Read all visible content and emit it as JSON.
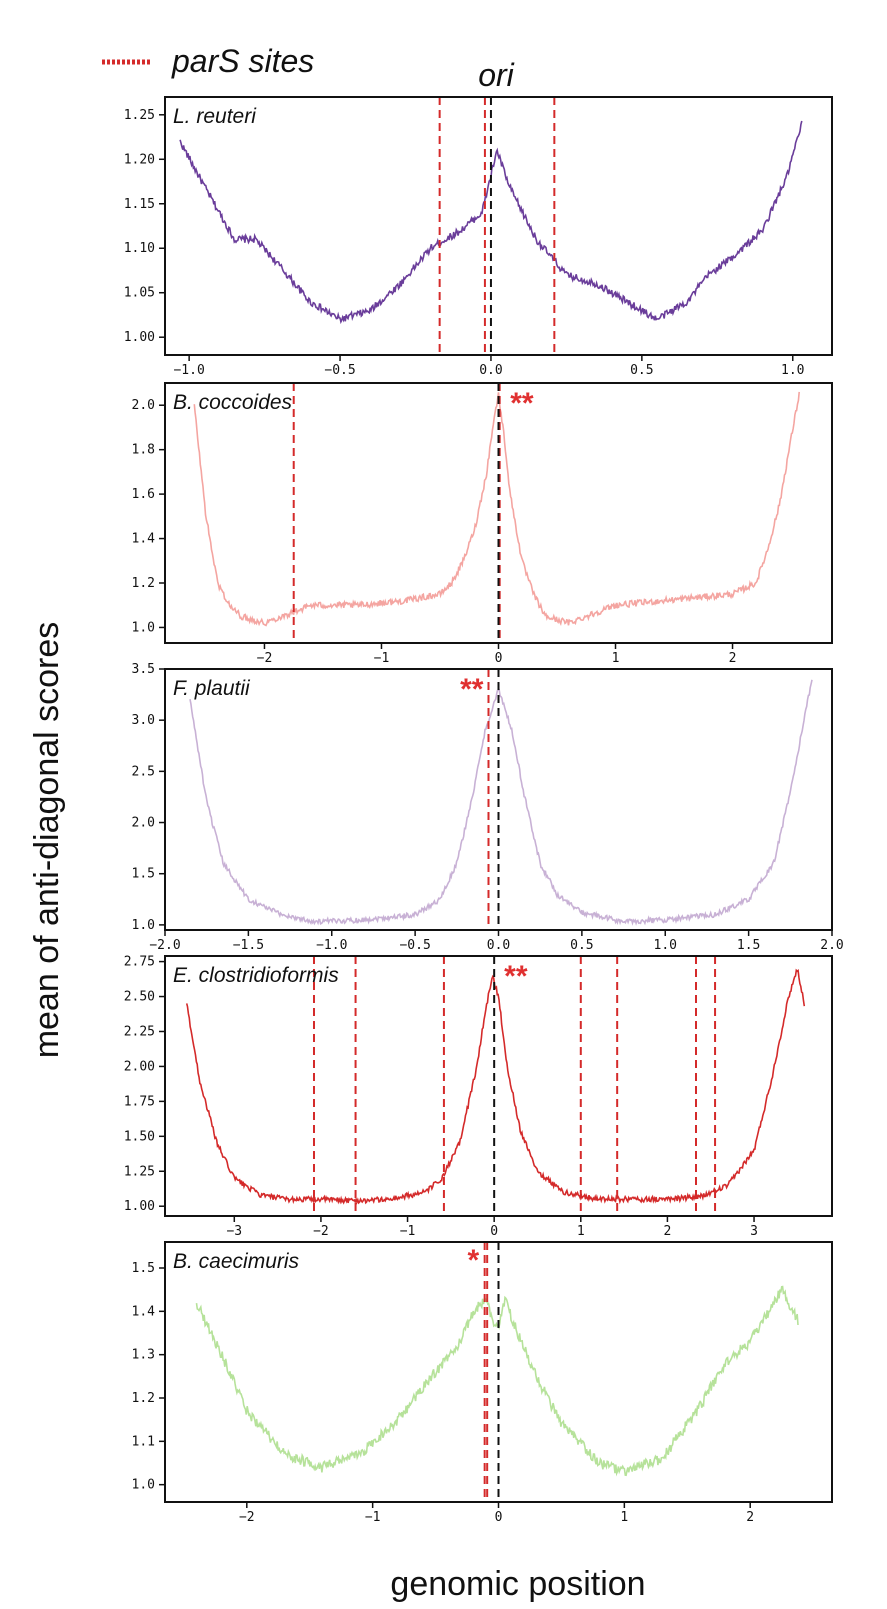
{
  "legend": {
    "label": "parS sites",
    "color": "#d42a2a"
  },
  "ori_label": "ori",
  "ylabel": "mean of anti-diagonal scores",
  "xlabel": "genomic position",
  "chart_data": [
    {
      "type": "line",
      "title": "L. reuteri",
      "color": "#6a3d9a",
      "xlim": [
        -1.08,
        1.13
      ],
      "ylim": [
        0.98,
        1.27
      ],
      "xticks": [
        -1.0,
        -0.5,
        0.0,
        0.5,
        1.0
      ],
      "xtick_labels": [
        "−1.0",
        "−0.5",
        "0.0",
        "0.5",
        "1.0"
      ],
      "yticks": [
        1.0,
        1.05,
        1.1,
        1.15,
        1.2,
        1.25
      ],
      "ytick_labels": [
        "1.00",
        "1.05",
        "1.10",
        "1.15",
        "1.20",
        "1.25"
      ],
      "pars_sites": [
        -0.17,
        -0.02,
        0.21
      ],
      "ori": 0.0,
      "annotation": "",
      "annotation_x": 0,
      "noise": 0.014,
      "profile": {
        "x": [
          -1.03,
          -0.95,
          -0.85,
          -0.78,
          -0.7,
          -0.6,
          -0.5,
          -0.4,
          -0.3,
          -0.2,
          -0.1,
          -0.03,
          0.02,
          0.06,
          0.15,
          0.25,
          0.35,
          0.45,
          0.5,
          0.55,
          0.65,
          0.72,
          0.8,
          0.9,
          0.98,
          1.03
        ],
        "y": [
          1.22,
          1.17,
          1.11,
          1.11,
          1.08,
          1.04,
          1.02,
          1.03,
          1.06,
          1.1,
          1.12,
          1.14,
          1.21,
          1.17,
          1.11,
          1.07,
          1.06,
          1.04,
          1.03,
          1.02,
          1.04,
          1.07,
          1.09,
          1.12,
          1.18,
          1.24
        ]
      }
    },
    {
      "type": "line",
      "title": "B. coccoides",
      "color": "#f4a5a1",
      "xlim": [
        -2.85,
        2.85
      ],
      "ylim": [
        0.93,
        2.1
      ],
      "xticks": [
        -2,
        -1,
        0,
        1,
        2
      ],
      "xtick_labels": [
        "−2",
        "−1",
        "0",
        "1",
        "2"
      ],
      "yticks": [
        1.0,
        1.2,
        1.4,
        1.6,
        1.8,
        2.0
      ],
      "ytick_labels": [
        "1.0",
        "1.2",
        "1.4",
        "1.6",
        "1.8",
        "2.0"
      ],
      "pars_sites": [
        -1.75,
        0.01
      ],
      "ori": 0.0,
      "annotation": "**",
      "annotation_x": 0.2,
      "noise": 0.012,
      "profile": {
        "x": [
          -2.6,
          -2.5,
          -2.4,
          -2.3,
          -2.2,
          -2.0,
          -1.8,
          -1.6,
          -1.2,
          -0.8,
          -0.5,
          -0.4,
          -0.3,
          -0.2,
          -0.1,
          -0.05,
          0.0,
          0.05,
          0.1,
          0.2,
          0.3,
          0.4,
          0.6,
          0.8,
          1.0,
          1.2,
          1.6,
          2.0,
          2.2,
          2.3,
          2.4,
          2.5,
          2.57
        ],
        "y": [
          2.0,
          1.5,
          1.2,
          1.1,
          1.05,
          1.02,
          1.06,
          1.1,
          1.1,
          1.12,
          1.15,
          1.2,
          1.3,
          1.45,
          1.7,
          1.9,
          2.05,
          1.85,
          1.6,
          1.3,
          1.15,
          1.05,
          1.02,
          1.06,
          1.1,
          1.11,
          1.13,
          1.15,
          1.2,
          1.35,
          1.55,
          1.85,
          2.05
        ]
      }
    },
    {
      "type": "line",
      "title": "F. plautii",
      "color": "#c8b1d5",
      "xlim": [
        -2.0,
        2.0
      ],
      "ylim": [
        0.95,
        3.5
      ],
      "xticks": [
        -2.0,
        -1.5,
        -1.0,
        -0.5,
        0.0,
        0.5,
        1.0,
        1.5,
        2.0
      ],
      "xtick_labels": [
        "−2.0",
        "−1.5",
        "−1.0",
        "−0.5",
        "0.0",
        "0.5",
        "1.0",
        "1.5",
        "2.0"
      ],
      "yticks": [
        1.0,
        1.5,
        2.0,
        2.5,
        3.0,
        3.5
      ],
      "ytick_labels": [
        "1.0",
        "1.5",
        "2.0",
        "2.5",
        "3.0",
        "3.5"
      ],
      "pars_sites": [
        -0.06
      ],
      "ori": 0.0,
      "annotation": "**",
      "annotation_x": -0.16,
      "noise": 0.01,
      "profile": {
        "x": [
          -1.85,
          -1.75,
          -1.65,
          -1.5,
          -1.3,
          -1.1,
          -0.8,
          -0.5,
          -0.35,
          -0.25,
          -0.15,
          -0.08,
          0.0,
          0.08,
          0.15,
          0.25,
          0.35,
          0.5,
          0.75,
          1.0,
          1.3,
          1.5,
          1.65,
          1.75,
          1.88
        ],
        "y": [
          3.2,
          2.2,
          1.6,
          1.25,
          1.1,
          1.03,
          1.05,
          1.1,
          1.25,
          1.6,
          2.3,
          2.9,
          3.3,
          2.9,
          2.3,
          1.6,
          1.3,
          1.12,
          1.03,
          1.05,
          1.1,
          1.25,
          1.6,
          2.3,
          3.4
        ]
      }
    },
    {
      "type": "line",
      "title": "E. clostridioformis",
      "color": "#d42a2a",
      "xlim": [
        -3.8,
        3.9
      ],
      "ylim": [
        0.93,
        2.79
      ],
      "xticks": [
        -3,
        -2,
        -1,
        0,
        1,
        2,
        3
      ],
      "xtick_labels": [
        "−3",
        "−2",
        "−1",
        "0",
        "1",
        "2",
        "3"
      ],
      "yticks": [
        1.0,
        1.25,
        1.5,
        1.75,
        2.0,
        2.25,
        2.5,
        2.75
      ],
      "ytick_labels": [
        "1.00",
        "1.25",
        "1.50",
        "1.75",
        "2.00",
        "2.25",
        "2.50",
        "2.75"
      ],
      "pars_sites": [
        -2.08,
        -1.6,
        -0.58,
        1.0,
        1.42,
        2.33,
        2.55
      ],
      "ori": 0.0,
      "annotation": "**",
      "annotation_x": 0.25,
      "noise": 0.01,
      "profile": {
        "x": [
          -3.55,
          -3.4,
          -3.2,
          -3.0,
          -2.7,
          -2.4,
          -2.0,
          -1.6,
          -1.2,
          -0.8,
          -0.6,
          -0.4,
          -0.2,
          -0.1,
          -0.02,
          0.05,
          0.15,
          0.3,
          0.5,
          0.8,
          1.2,
          1.6,
          2.0,
          2.4,
          2.7,
          3.0,
          3.2,
          3.4,
          3.5,
          3.58
        ],
        "y": [
          2.45,
          1.9,
          1.45,
          1.2,
          1.08,
          1.05,
          1.05,
          1.04,
          1.05,
          1.1,
          1.2,
          1.45,
          2.0,
          2.4,
          2.65,
          2.5,
          2.0,
          1.55,
          1.25,
          1.1,
          1.05,
          1.05,
          1.05,
          1.07,
          1.15,
          1.4,
          1.9,
          2.5,
          2.7,
          2.45
        ]
      }
    },
    {
      "type": "line",
      "title": "B. caecimuris",
      "color": "#b6e29a",
      "xlim": [
        -2.65,
        2.65
      ],
      "ylim": [
        0.96,
        1.56
      ],
      "xticks": [
        -2,
        -1,
        0,
        1,
        2
      ],
      "xtick_labels": [
        "−2",
        "−1",
        "0",
        "1",
        "2"
      ],
      "yticks": [
        1.0,
        1.1,
        1.2,
        1.3,
        1.4,
        1.5
      ],
      "ytick_labels": [
        "1.0",
        "1.1",
        "1.2",
        "1.3",
        "1.4",
        "1.5"
      ],
      "pars_sites": [
        -0.09,
        -0.11
      ],
      "ori": 0.0,
      "annotation": "*",
      "annotation_x": -0.2,
      "noise": 0.02,
      "profile": {
        "x": [
          -2.4,
          -2.2,
          -2.0,
          -1.7,
          -1.4,
          -1.1,
          -0.8,
          -0.5,
          -0.3,
          -0.2,
          -0.1,
          -0.05,
          0.0,
          0.05,
          0.15,
          0.3,
          0.5,
          0.8,
          1.0,
          1.3,
          1.6,
          1.8,
          2.0,
          2.15,
          2.25,
          2.38
        ],
        "y": [
          1.42,
          1.3,
          1.17,
          1.07,
          1.04,
          1.07,
          1.15,
          1.26,
          1.33,
          1.4,
          1.43,
          1.38,
          1.36,
          1.43,
          1.35,
          1.25,
          1.14,
          1.05,
          1.03,
          1.06,
          1.18,
          1.28,
          1.33,
          1.4,
          1.45,
          1.38
        ]
      }
    }
  ]
}
